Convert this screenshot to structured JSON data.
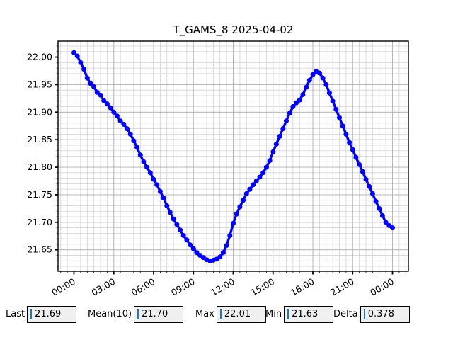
{
  "title": "T_GAMS_8 2025-04-02",
  "colors": {
    "line": "#0000ff",
    "grid_major": "#b3b3b3",
    "grid_minor": "#d2d2d2",
    "spine": "#000000",
    "widget_box_bg": "#f0f0f0",
    "widget_cursor": "#1f77b4",
    "background": "#ffffff"
  },
  "chart_data": {
    "type": "line",
    "title": "T_GAMS_8 2025-04-02",
    "xlabel": "",
    "ylabel": "",
    "x_unit": "hours",
    "xlim": [
      -1.2,
      25.2
    ],
    "ylim": [
      21.611,
      22.029
    ],
    "grid": "both",
    "x_major_ticks": [
      0,
      3,
      6,
      9,
      12,
      15,
      18,
      21,
      24
    ],
    "x_tick_labels": [
      "00:00",
      "03:00",
      "06:00",
      "09:00",
      "12:00",
      "15:00",
      "18:00",
      "21:00",
      "00:00"
    ],
    "x_minor_step": 0.5,
    "y_major_ticks": [
      21.65,
      21.7,
      21.75,
      21.8,
      21.85,
      21.9,
      21.95,
      22.0
    ],
    "y_minor_step": 0.01,
    "legend": "none",
    "series": [
      {
        "name": "T_GAMS_8",
        "color": "#0000ff",
        "marker": "circle",
        "points": [
          [
            0.0,
            22.008
          ],
          [
            0.25,
            22.002
          ],
          [
            0.5,
            21.99
          ],
          [
            0.75,
            21.978
          ],
          [
            1.0,
            21.962
          ],
          [
            1.25,
            21.952
          ],
          [
            1.5,
            21.946
          ],
          [
            1.75,
            21.936
          ],
          [
            2.0,
            21.931
          ],
          [
            2.25,
            21.921
          ],
          [
            2.5,
            21.915
          ],
          [
            2.75,
            21.908
          ],
          [
            3.0,
            21.9
          ],
          [
            3.25,
            21.893
          ],
          [
            3.5,
            21.884
          ],
          [
            3.75,
            21.878
          ],
          [
            4.0,
            21.87
          ],
          [
            4.25,
            21.86
          ],
          [
            4.5,
            21.848
          ],
          [
            4.75,
            21.836
          ],
          [
            5.0,
            21.822
          ],
          [
            5.25,
            21.81
          ],
          [
            5.5,
            21.8
          ],
          [
            5.75,
            21.79
          ],
          [
            6.0,
            21.778
          ],
          [
            6.25,
            21.768
          ],
          [
            6.5,
            21.756
          ],
          [
            6.75,
            21.744
          ],
          [
            7.0,
            21.73
          ],
          [
            7.25,
            21.718
          ],
          [
            7.5,
            21.706
          ],
          [
            7.75,
            21.696
          ],
          [
            8.0,
            21.686
          ],
          [
            8.25,
            21.676
          ],
          [
            8.5,
            21.668
          ],
          [
            8.75,
            21.659
          ],
          [
            9.0,
            21.652
          ],
          [
            9.25,
            21.645
          ],
          [
            9.5,
            21.64
          ],
          [
            9.75,
            21.636
          ],
          [
            10.0,
            21.632
          ],
          [
            10.25,
            21.63
          ],
          [
            10.5,
            21.631
          ],
          [
            10.75,
            21.633
          ],
          [
            11.0,
            21.637
          ],
          [
            11.25,
            21.645
          ],
          [
            11.5,
            21.658
          ],
          [
            11.75,
            21.676
          ],
          [
            12.0,
            21.698
          ],
          [
            12.25,
            21.715
          ],
          [
            12.5,
            21.728
          ],
          [
            12.75,
            21.74
          ],
          [
            13.0,
            21.752
          ],
          [
            13.25,
            21.76
          ],
          [
            13.5,
            21.768
          ],
          [
            13.75,
            21.775
          ],
          [
            14.0,
            21.782
          ],
          [
            14.25,
            21.79
          ],
          [
            14.5,
            21.8
          ],
          [
            14.75,
            21.812
          ],
          [
            15.0,
            21.828
          ],
          [
            15.25,
            21.842
          ],
          [
            15.5,
            21.856
          ],
          [
            15.75,
            21.87
          ],
          [
            16.0,
            21.884
          ],
          [
            16.25,
            21.898
          ],
          [
            16.5,
            21.91
          ],
          [
            16.75,
            21.917
          ],
          [
            17.0,
            21.922
          ],
          [
            17.25,
            21.932
          ],
          [
            17.5,
            21.945
          ],
          [
            17.75,
            21.958
          ],
          [
            18.0,
            21.968
          ],
          [
            18.25,
            21.974
          ],
          [
            18.5,
            21.971
          ],
          [
            18.75,
            21.962
          ],
          [
            19.0,
            21.95
          ],
          [
            19.25,
            21.935
          ],
          [
            19.5,
            21.92
          ],
          [
            19.75,
            21.905
          ],
          [
            20.0,
            21.89
          ],
          [
            20.25,
            21.875
          ],
          [
            20.5,
            21.86
          ],
          [
            20.75,
            21.845
          ],
          [
            21.0,
            21.832
          ],
          [
            21.25,
            21.818
          ],
          [
            21.5,
            21.805
          ],
          [
            21.75,
            21.792
          ],
          [
            22.0,
            21.778
          ],
          [
            22.25,
            21.765
          ],
          [
            22.5,
            21.752
          ],
          [
            22.75,
            21.738
          ],
          [
            23.0,
            21.725
          ],
          [
            23.25,
            21.712
          ],
          [
            23.5,
            21.7
          ],
          [
            23.75,
            21.694
          ],
          [
            24.0,
            21.69
          ]
        ]
      }
    ]
  },
  "stats": [
    {
      "label": "Last",
      "value": "21.69"
    },
    {
      "label": "Mean(10)",
      "value": "21.70"
    },
    {
      "label": "Max",
      "value": "22.01"
    },
    {
      "label": "Min",
      "value": "21.63"
    },
    {
      "label": "Delta",
      "value": "0.378"
    }
  ]
}
